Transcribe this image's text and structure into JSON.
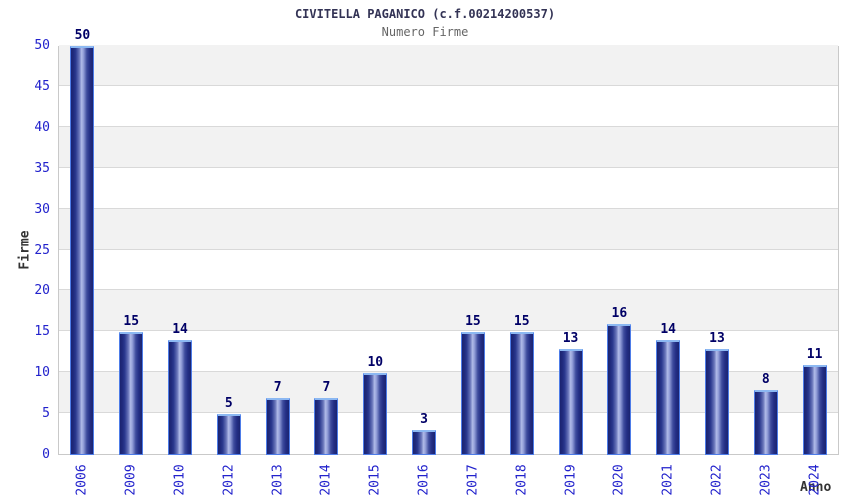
{
  "title": "CIVITELLA PAGANICO (c.f.00214200537)",
  "subtitle": "Numero Firme",
  "chart_data": {
    "type": "bar",
    "title": "CIVITELLA PAGANICO (c.f.00214200537)",
    "subtitle": "Numero Firme",
    "xlabel": "Anno",
    "ylabel": "Firme",
    "categories": [
      "2006",
      "2009",
      "2010",
      "2012",
      "2013",
      "2014",
      "2015",
      "2016",
      "2017",
      "2018",
      "2019",
      "2020",
      "2021",
      "2022",
      "2023",
      "2024"
    ],
    "values": [
      50,
      15,
      14,
      5,
      7,
      7,
      10,
      3,
      15,
      15,
      13,
      16,
      14,
      13,
      8,
      11
    ],
    "ylim": [
      0,
      50
    ],
    "yticks": [
      0,
      5,
      10,
      15,
      20,
      25,
      30,
      35,
      40,
      45,
      50
    ],
    "grid": true,
    "legend": "none",
    "bands_alternating": true
  },
  "colors": {
    "tick_label": "#2222cc",
    "value_label": "#000066",
    "title": "#333355",
    "subtitle": "#666666",
    "axis_label": "#333333",
    "band_gray": "#f2f2f2",
    "band_white": "#ffffff",
    "gridline": "#d9d9d9",
    "plot_border": "#c9c9c9",
    "bar_edge_dark": "#1b2470",
    "bar_center_light": "#b2bce9",
    "bar_border": "#4d7ce8",
    "bar_top_cap": "#8cb8f2"
  }
}
